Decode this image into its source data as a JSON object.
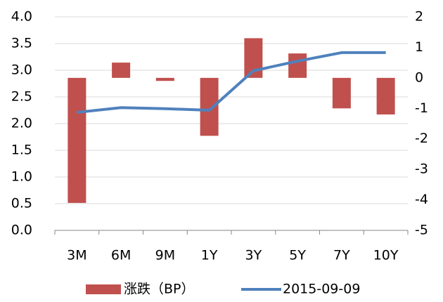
{
  "chart_data": {
    "type": "bar-line",
    "categories": [
      "3M",
      "6M",
      "9M",
      "1Y",
      "3Y",
      "5Y",
      "7Y",
      "10Y"
    ],
    "series": [
      {
        "name": "涨跌（BP）",
        "type": "bar",
        "color": "#c0504d",
        "axis": "y2",
        "values": [
          -4.1,
          0.5,
          -0.1,
          -1.9,
          1.3,
          0.8,
          -1.0,
          -1.2
        ]
      },
      {
        "name": "2015-09-09",
        "type": "line",
        "color": "#4f81bd",
        "axis": "y",
        "values": [
          2.21,
          2.3,
          2.28,
          2.25,
          2.99,
          3.17,
          3.33,
          3.33
        ]
      }
    ],
    "ylim": [
      0,
      4
    ],
    "yticks": [
      {
        "value": 0,
        "label": "0.0"
      },
      0.5,
      {
        "value": 1,
        "label": "1.0"
      },
      1.5,
      {
        "value": 2,
        "label": "2.0"
      },
      2.5,
      {
        "value": 3,
        "label": "3.0"
      },
      3.5,
      {
        "value": 4,
        "label": "4.0"
      }
    ],
    "y2lim": [
      -5,
      2
    ],
    "y2ticks": [
      -5,
      -4,
      -3,
      -2,
      -1,
      0,
      1,
      2
    ],
    "grid": true,
    "legend": "bottom"
  }
}
